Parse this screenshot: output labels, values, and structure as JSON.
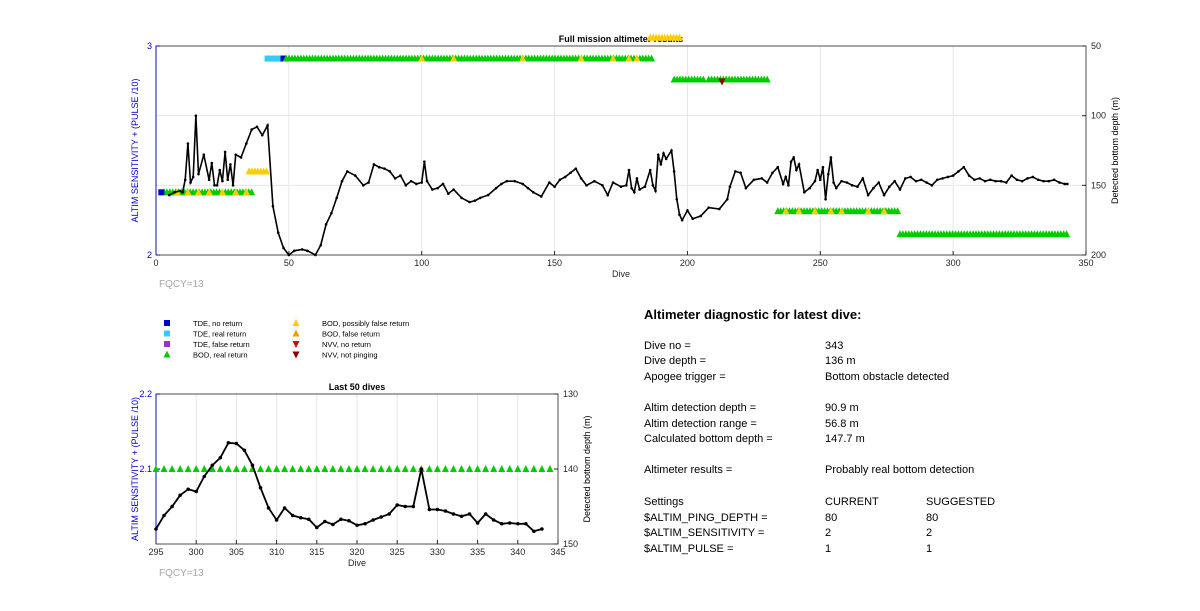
{
  "chart_data": [
    {
      "type": "line",
      "title": "Full mission altimeter results",
      "xlabel": "Dive",
      "ylabel_left": "ALTIM SENSITIVITY + (PULSE /10)",
      "ylabel_right": "Detected bottom depth (m)",
      "xlim": [
        0,
        350
      ],
      "ylim_left": [
        2,
        3
      ],
      "ylim_right": [
        200,
        50
      ],
      "right_axis_reversed": true,
      "xticks": [
        "0",
        "50",
        "100",
        "150",
        "200",
        "250",
        "300",
        "350"
      ],
      "yticks_left": [
        "2",
        "3"
      ],
      "yticks_right": [
        "50",
        "100",
        "150",
        "200"
      ],
      "grid": true,
      "footnote": "FQCY=13",
      "bottom_depth": {
        "x": [
          5,
          7,
          9,
          10,
          11,
          12,
          13,
          14,
          15,
          16,
          18,
          20,
          21,
          22,
          23,
          24,
          25,
          26,
          27,
          28,
          29,
          30,
          32,
          34,
          36,
          38,
          40,
          42,
          44,
          46,
          48,
          50,
          52,
          55,
          57,
          60,
          62,
          64,
          66,
          68,
          70,
          72,
          75,
          78,
          80,
          82,
          84,
          86,
          88,
          90,
          92,
          94,
          96,
          98,
          100,
          101,
          102,
          104,
          106,
          108,
          110,
          112,
          115,
          118,
          120,
          122,
          125,
          128,
          130,
          132,
          135,
          138,
          140,
          142,
          145,
          148,
          150,
          152,
          154,
          156,
          158,
          160,
          162,
          165,
          168,
          170,
          172,
          175,
          177,
          178,
          179,
          180,
          181,
          182,
          184,
          186,
          187,
          188,
          189,
          190,
          191,
          192,
          194,
          195,
          196,
          197,
          198,
          200,
          202,
          205,
          208,
          212,
          215,
          216,
          218,
          220,
          222,
          225,
          228,
          230,
          232,
          234,
          236,
          237,
          238,
          239,
          240,
          241,
          242,
          244,
          246,
          248,
          249,
          250,
          251,
          252,
          253,
          254,
          255,
          256,
          258,
          260,
          262,
          264,
          266,
          268,
          270,
          272,
          274,
          276,
          278,
          280,
          282,
          284,
          286,
          288,
          290,
          292,
          294,
          296,
          298,
          300,
          302,
          304,
          306,
          308,
          310,
          312,
          314,
          316,
          318,
          320,
          322,
          324,
          326,
          328,
          330,
          332,
          334,
          336,
          338,
          340,
          342,
          343
        ],
        "y": [
          157,
          155,
          154,
          155,
          146,
          120,
          148,
          144,
          100,
          142,
          128,
          146,
          134,
          150,
          150,
          139,
          147,
          126,
          146,
          135,
          150,
          128,
          130,
          120,
          110,
          108,
          114,
          107,
          165,
          184,
          195,
          200,
          197,
          196,
          197,
          200,
          193,
          178,
          170,
          159,
          147,
          140,
          143,
          150,
          148,
          135,
          137,
          138,
          140,
          145,
          143,
          150,
          147,
          149,
          148,
          133,
          147,
          153,
          152,
          149,
          156,
          153,
          159,
          162,
          161,
          159,
          157,
          152,
          149,
          147,
          147,
          149,
          152,
          155,
          158,
          148,
          151,
          146,
          144,
          141,
          138,
          145,
          150,
          147,
          150,
          157,
          148,
          151,
          150,
          139,
          152,
          155,
          145,
          153,
          151,
          139,
          150,
          154,
          128,
          135,
          127,
          131,
          125,
          140,
          160,
          171,
          175,
          168,
          174,
          172,
          166,
          167,
          160,
          151,
          140,
          141,
          152,
          146,
          145,
          148,
          141,
          137,
          149,
          144,
          150,
          133,
          130,
          139,
          135,
          155,
          152,
          147,
          139,
          146,
          137,
          160,
          142,
          130,
          148,
          152,
          147,
          148,
          150,
          151,
          145,
          157,
          152,
          148,
          157,
          151,
          147,
          153,
          145,
          144,
          147,
          146,
          148,
          150,
          146,
          145,
          144,
          143,
          140,
          137,
          143,
          146,
          145,
          147,
          146,
          147,
          147,
          148,
          143,
          146,
          147,
          145,
          144,
          146,
          147,
          147,
          146,
          148,
          149,
          149
        ]
      },
      "legend": [
        {
          "label": "TDE, no return",
          "marker": "square",
          "color": "#0000cc"
        },
        {
          "label": "TDE, real return",
          "marker": "square",
          "color": "#33ccff"
        },
        {
          "label": "TDE, false return",
          "marker": "square",
          "color": "#9933cc"
        },
        {
          "label": "BOD, real return",
          "marker": "triangle-up",
          "color": "#00cc00"
        },
        {
          "label": "BOD, possibly false return",
          "marker": "triangle-up",
          "color": "#ffcc00"
        },
        {
          "label": "BOD, false return",
          "marker": "triangle-up",
          "color": "#ff9900"
        },
        {
          "label": "NVV, no return",
          "marker": "triangle-down",
          "color": "#dd0000"
        },
        {
          "label": "NVV, not pinging",
          "marker": "triangle-down",
          "color": "#880000"
        }
      ],
      "status_markers": [
        {
          "series": "BOD, real return",
          "y": 2.3,
          "x_start": 3,
          "x_end": 36,
          "step": 1.1
        },
        {
          "series": "BOD, possibly false return",
          "y": 2.3,
          "x": [
            8,
            12,
            16,
            20,
            25,
            30,
            34
          ]
        },
        {
          "series": "TDE, no return",
          "y": 2.3,
          "x": [
            2
          ]
        },
        {
          "series": "BOD, possibly false return",
          "y": 2.4,
          "x_start": 35,
          "x_end": 42,
          "step": 1.1
        },
        {
          "series": "TDE, real return",
          "y": 2.94,
          "x_start": 42,
          "x_end": 48,
          "step": 1.1
        },
        {
          "series": "TDE, no return",
          "y": 2.94,
          "x": [
            48
          ]
        },
        {
          "series": "BOD, real return",
          "y": 2.94,
          "x_start": 49,
          "x_end": 187,
          "step": 1.1
        },
        {
          "series": "BOD, possibly false return",
          "y": 2.94,
          "x": [
            100,
            112,
            138,
            160,
            172,
            178,
            181
          ]
        },
        {
          "series": "BOD, possibly false return",
          "y": 3.04,
          "x_start": 186,
          "x_end": 197,
          "step": 1.1
        },
        {
          "series": "BOD, real return",
          "y": 2.84,
          "x_start": 195,
          "x_end": 207,
          "step": 1.1
        },
        {
          "series": "BOD, real return",
          "y": 2.84,
          "x_start": 208,
          "x_end": 231,
          "step": 1.1
        },
        {
          "series": "NVV, not pinging",
          "y": 2.83,
          "x": [
            213
          ]
        },
        {
          "series": "BOD, real return",
          "y": 2.21,
          "x_start": 234,
          "x_end": 280,
          "step": 1.1
        },
        {
          "series": "BOD, possibly false return",
          "y": 2.21,
          "x": [
            237,
            242,
            248,
            254,
            258,
            268,
            274
          ]
        },
        {
          "series": "BOD, real return",
          "y": 2.1,
          "x_start": 280,
          "x_end": 343,
          "step": 1.1
        }
      ]
    },
    {
      "type": "line",
      "title": "Last 50 dives",
      "xlabel": "Dive",
      "ylabel_left": "ALTIM SENSITIVITY + (PULSE /10)",
      "ylabel_right": "Detected bottom depth (m)",
      "xlim": [
        295,
        345
      ],
      "ylim_left": [
        2,
        2.2
      ],
      "ylim_right": [
        150,
        130
      ],
      "right_axis_reversed": true,
      "xticks": [
        "295",
        "300",
        "305",
        "310",
        "315",
        "320",
        "325",
        "330",
        "335",
        "340",
        "345"
      ],
      "yticks_left": [
        "2.1",
        "2.2"
      ],
      "yticks_right": [
        "130",
        "140",
        "150"
      ],
      "grid": true,
      "footnote": "FQCY=13",
      "bottom_depth": {
        "x": [
          295,
          296,
          297,
          298,
          299,
          300,
          301,
          302,
          303,
          304,
          305,
          306,
          307,
          308,
          309,
          310,
          311,
          312,
          313,
          314,
          315,
          316,
          317,
          318,
          319,
          320,
          321,
          322,
          323,
          324,
          325,
          326,
          327,
          328,
          329,
          330,
          331,
          332,
          333,
          334,
          335,
          336,
          337,
          338,
          339,
          340,
          341,
          342,
          343
        ],
        "y": [
          148.0,
          146.2,
          145.0,
          143.5,
          142.7,
          143.0,
          141.0,
          139.5,
          138.5,
          136.5,
          136.6,
          137.5,
          139.5,
          142.5,
          145.2,
          146.8,
          145.2,
          146.2,
          146.5,
          146.7,
          147.8,
          147.0,
          147.4,
          146.7,
          146.9,
          147.5,
          147.3,
          146.8,
          146.4,
          146.0,
          144.8,
          145.0,
          145.0,
          140.0,
          145.4,
          145.4,
          145.6,
          146.0,
          146.3,
          146.0,
          147.2,
          146.0,
          146.8,
          147.3,
          147.2,
          147.3,
          147.3,
          148.3,
          148.0
        ]
      },
      "status_markers": [
        {
          "series": "BOD, real return",
          "y": 2.1,
          "x_start": 295,
          "x_end": 344,
          "step": 1
        }
      ]
    }
  ],
  "diagnostic": {
    "title": "Altimeter diagnostic for latest dive:",
    "rows": [
      {
        "label": "Dive no =",
        "value": "343"
      },
      {
        "label": "Dive depth =",
        "value": "136 m"
      },
      {
        "label": "Apogee trigger =",
        "value": "Bottom obstacle detected"
      },
      {
        "label": "Altim detection depth =",
        "value": "90.9 m"
      },
      {
        "label": "Altim detection range =",
        "value": "56.8 m"
      },
      {
        "label": "Calculated bottom depth =",
        "value": "147.7 m"
      },
      {
        "label": "Altimeter results =",
        "value": "Probably real bottom detection"
      }
    ],
    "settings": {
      "header_label": "Settings",
      "col_current": "CURRENT",
      "col_suggested": "SUGGESTED",
      "rows": [
        {
          "label": "$ALTIM_PING_DEPTH =",
          "current": "80",
          "suggested": "80"
        },
        {
          "label": "$ALTIM_SENSITIVITY =",
          "current": "2",
          "suggested": "2"
        },
        {
          "label": "$ALTIM_PULSE =",
          "current": "1",
          "suggested": "1"
        }
      ]
    }
  }
}
